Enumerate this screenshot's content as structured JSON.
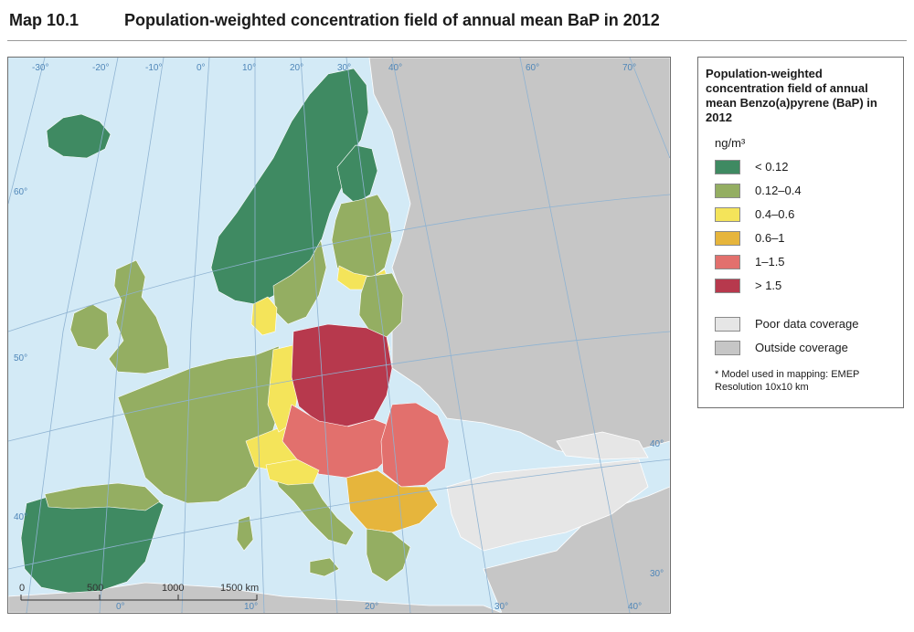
{
  "header": {
    "map_number": "Map 10.1",
    "title": "Population-weighted concentration field of annual mean BaP in 2012"
  },
  "map": {
    "colors": {
      "sea": "#d3eaf6",
      "outside": "#c6c6c6",
      "poor_data": "#e6e6e6",
      "graticule": "#8fb3d2",
      "border": "#ffffff"
    },
    "longitude_labels_top": [
      "-30°",
      "-20°",
      "-10°",
      "0°",
      "10°",
      "20°",
      "30°",
      "40°",
      "60°",
      "70°"
    ],
    "latitude_labels_left": [
      "60°",
      "50°",
      "40°"
    ],
    "latitude_labels_right": [
      "40°",
      "30°"
    ],
    "longitude_labels_bottom": [
      "0°",
      "10°",
      "20°",
      "30°",
      "40°"
    ],
    "scale_bar": {
      "ticks": [
        "0",
        "500",
        "1000",
        "1500 km"
      ]
    }
  },
  "legend": {
    "title": "Population-weighted concentration field of annual mean Benzo(a)pyrene (BaP) in 2012",
    "unit": "ng/m³",
    "classes": [
      {
        "label": "< 0.12",
        "color": "#3f8a62"
      },
      {
        "label": "0.12–0.4",
        "color": "#94ae62"
      },
      {
        "label": "0.4–0.6",
        "color": "#f4e45a"
      },
      {
        "label": "0.6–1",
        "color": "#e6b53c"
      },
      {
        "label": "1–1.5",
        "color": "#e2706d"
      },
      {
        "label": "> 1.5",
        "color": "#b7394d"
      }
    ],
    "other": [
      {
        "label": "Poor data coverage",
        "color": "#e6e6e6"
      },
      {
        "label": "Outside coverage",
        "color": "#c6c6c6"
      }
    ],
    "note": "* Model used in mapping: EMEP Resolution 10x10 km"
  }
}
